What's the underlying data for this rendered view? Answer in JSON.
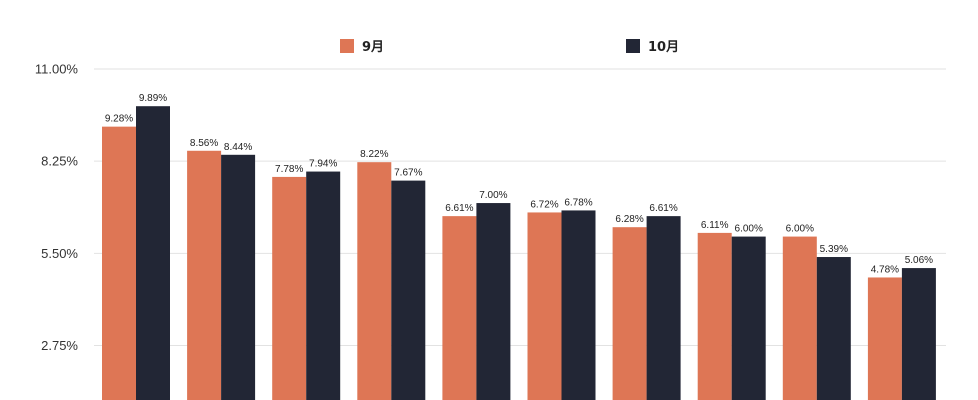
{
  "colors": {
    "series_sep": "#DE7655",
    "series_oct": "#222635",
    "grid": "#E2E2E2"
  },
  "legend": {
    "placement": "top-center",
    "items": [
      {
        "label": "9月",
        "color": "#DE7655"
      },
      {
        "label": "10月",
        "color": "#222635"
      }
    ]
  },
  "chart_data": {
    "type": "bar",
    "title": "",
    "xlabel": "",
    "ylabel": "",
    "ylim": [
      0,
      11
    ],
    "yticks": [
      2.75,
      5.5,
      8.25,
      11
    ],
    "ytick_labels": [
      "2.75%",
      "5.50%",
      "8.25%",
      "11.00%"
    ],
    "grid": true,
    "series": [
      {
        "name": "9月",
        "values": [
          9.28,
          8.56,
          7.78,
          8.22,
          6.61,
          6.72,
          6.28,
          6.11,
          6.0,
          4.78
        ],
        "labels": [
          "9.28%",
          "8.56%",
          "7.78%",
          "8.22%",
          "6.61%",
          "6.72%",
          "6.28%",
          "6.11%",
          "6.00%",
          "4.78%"
        ]
      },
      {
        "name": "10月",
        "values": [
          9.89,
          8.44,
          7.94,
          7.67,
          7.0,
          6.78,
          6.61,
          6.0,
          5.39,
          5.06
        ],
        "labels": [
          "9.89%",
          "8.44%",
          "7.94%",
          "7.67%",
          "7.00%",
          "6.78%",
          "6.61%",
          "6.00%",
          "5.39%",
          "5.06%"
        ]
      }
    ]
  }
}
